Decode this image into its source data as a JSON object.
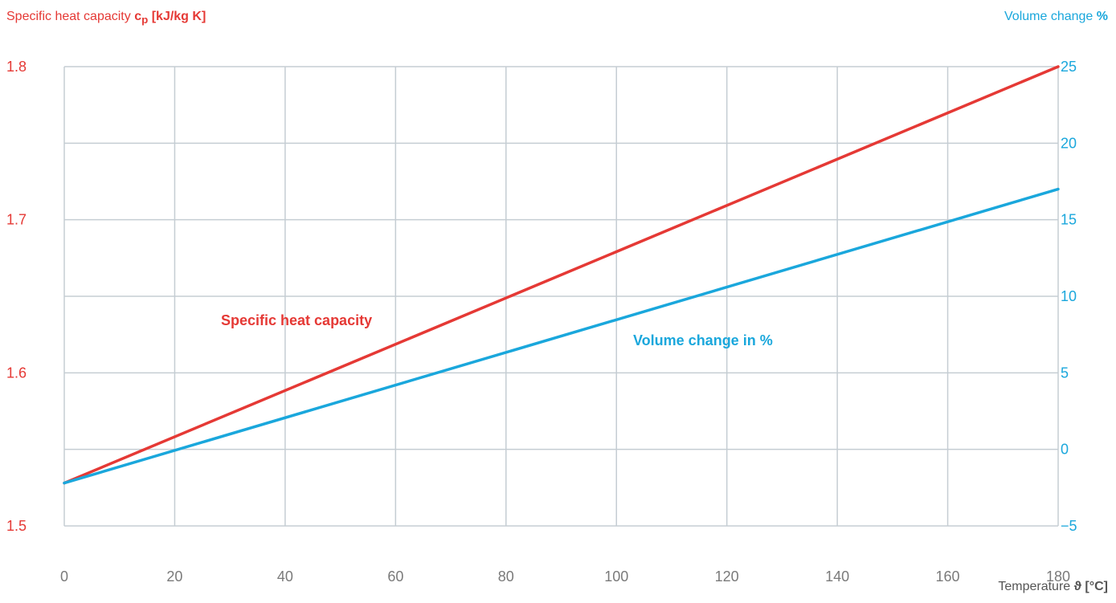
{
  "left_axis_title": {
    "prefix": "Specific heat capacity ",
    "bold": "c",
    "sub": "p",
    "bold2": " [kJ/kg K]"
  },
  "right_axis_title": {
    "prefix": "Volume change ",
    "bold": "%"
  },
  "x_axis_title": {
    "prefix": "Temperature ",
    "symbol": "ϑ",
    "bold": " [°C]"
  },
  "colors": {
    "cp": "#e53935",
    "volume": "#1aa7dc",
    "grid": "#c5cdd3"
  },
  "chart_data": {
    "type": "line",
    "x_range": [
      0,
      180
    ],
    "x_ticks": [
      0,
      20,
      40,
      60,
      80,
      100,
      120,
      140,
      160,
      180
    ],
    "y_left_range": [
      1.5,
      1.8
    ],
    "y_left_ticks": [
      "1.5",
      "",
      "1.6",
      "",
      "1.7",
      "",
      "1.8"
    ],
    "y_right_range": [
      -5,
      25
    ],
    "y_right_ticks": [
      "−5",
      "0",
      "5",
      "10",
      "15",
      "20",
      "25"
    ],
    "series": [
      {
        "name": "Specific heat capacity",
        "axis": "left",
        "x": [
          0,
          180
        ],
        "y": [
          1.528,
          1.8
        ]
      },
      {
        "name": "Volume change in %",
        "axis": "right",
        "x": [
          0,
          180
        ],
        "y": [
          -2.2,
          17.0
        ]
      }
    ]
  }
}
